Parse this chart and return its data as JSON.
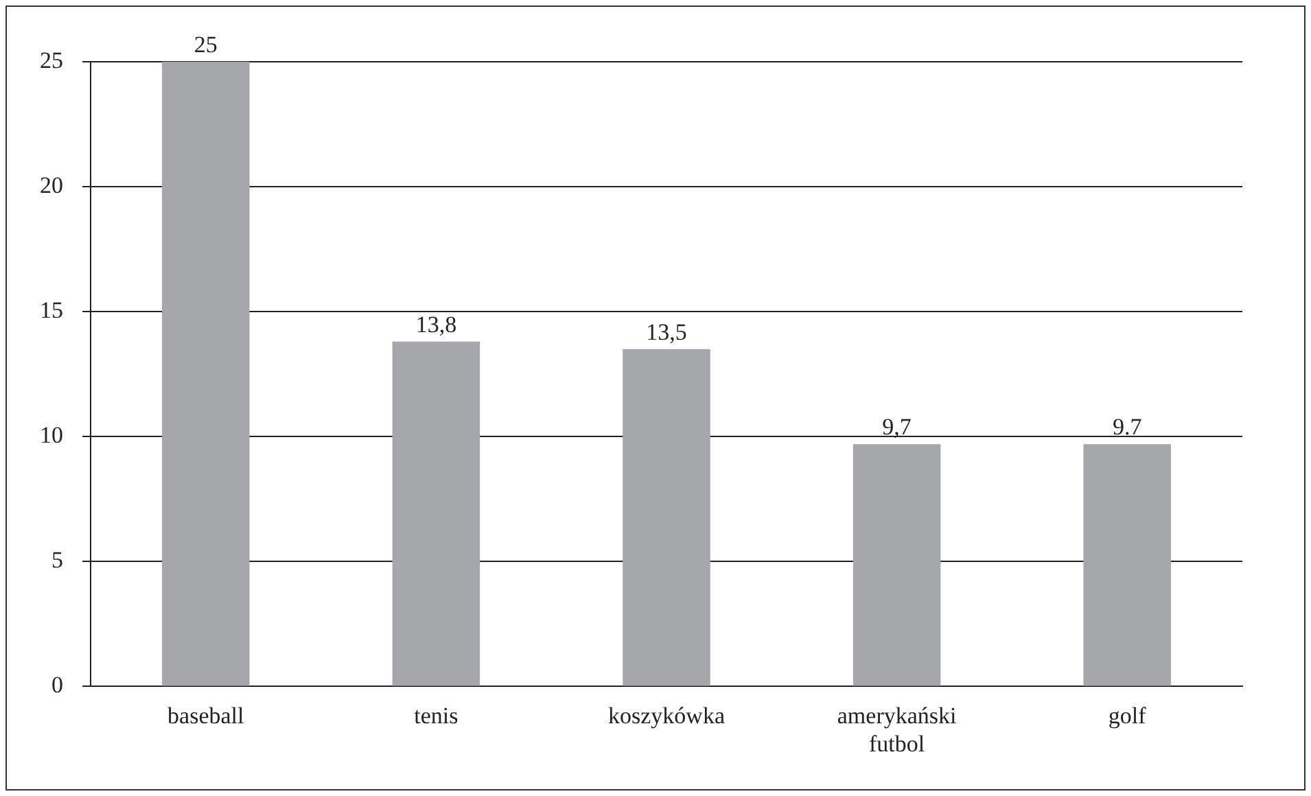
{
  "chart_data": {
    "type": "bar",
    "categories": [
      "baseball",
      "tenis",
      "koszykówka",
      "amerykański futbol",
      "golf"
    ],
    "values": [
      25,
      13.8,
      13.5,
      9.7,
      9.7
    ],
    "value_labels": [
      "25",
      "13,8",
      "13,5",
      "9,7",
      "9.7"
    ],
    "color": "#a6a7aa",
    "ylim": [
      0,
      25
    ],
    "yticks": [
      0,
      5,
      10,
      15,
      20,
      25
    ],
    "grid": "y",
    "legend": false
  }
}
